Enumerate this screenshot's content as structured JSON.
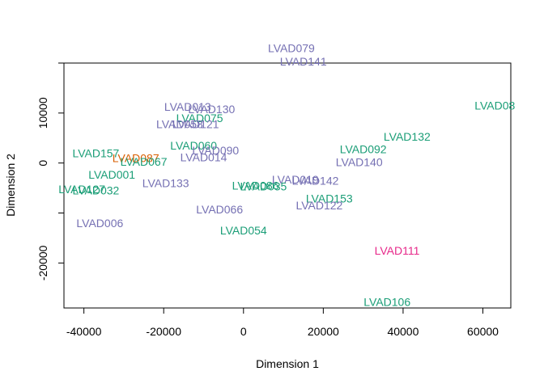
{
  "chart_data": {
    "type": "scatter",
    "title": "",
    "xlabel": "Dimension 1",
    "ylabel": "Dimension 2",
    "xlim": [
      -45000,
      67000
    ],
    "ylim": [
      -29000,
      20000
    ],
    "xticks": [
      -40000,
      -20000,
      0,
      20000,
      40000,
      60000
    ],
    "xtick_labels": [
      "-40000",
      "-20000",
      "0",
      "20000",
      "40000",
      "60000"
    ],
    "yticks": [
      -20000,
      -10000,
      0,
      10000,
      20000
    ],
    "ytick_labels": [
      "-20000",
      "",
      "0",
      "10000",
      ""
    ],
    "grid": false,
    "colors": {
      "green": "#1b9e77",
      "purple": "#7570b3",
      "orange": "#d95f02",
      "magenta": "#e7298a",
      "axis": "#000000"
    },
    "points": [
      {
        "label": "LVAD079",
        "x": 12000,
        "y": 23000,
        "color": "purple"
      },
      {
        "label": "LVAD141",
        "x": 15000,
        "y": 20300,
        "color": "purple"
      },
      {
        "label": "LVAD08",
        "x": 63000,
        "y": 11500,
        "color": "green"
      },
      {
        "label": "LVAD013",
        "x": -14000,
        "y": 11300,
        "color": "purple"
      },
      {
        "label": "LVAD130",
        "x": -8000,
        "y": 10800,
        "color": "purple"
      },
      {
        "label": "LVAD075",
        "x": -11000,
        "y": 9000,
        "color": "green"
      },
      {
        "label": "LVAD058",
        "x": -16000,
        "y": 7800,
        "color": "purple"
      },
      {
        "label": "LVAD121",
        "x": -12000,
        "y": 7800,
        "color": "purple"
      },
      {
        "label": "LVAD132",
        "x": 41000,
        "y": 5300,
        "color": "green"
      },
      {
        "label": "LVAD060",
        "x": -12500,
        "y": 3500,
        "color": "green"
      },
      {
        "label": "LVAD090",
        "x": -7000,
        "y": 2500,
        "color": "purple"
      },
      {
        "label": "LVAD092",
        "x": 30000,
        "y": 2800,
        "color": "green"
      },
      {
        "label": "LVAD157",
        "x": -37000,
        "y": 2000,
        "color": "green"
      },
      {
        "label": "LVAD014",
        "x": -10000,
        "y": 1200,
        "color": "purple"
      },
      {
        "label": "LVAD087",
        "x": -27000,
        "y": 1000,
        "color": "orange"
      },
      {
        "label": "LVAD067",
        "x": -25000,
        "y": 300,
        "color": "green"
      },
      {
        "label": "LVAD140",
        "x": 29000,
        "y": 200,
        "color": "purple"
      },
      {
        "label": "LVAD001",
        "x": -33000,
        "y": -2300,
        "color": "green"
      },
      {
        "label": "LVAD133",
        "x": -19500,
        "y": -4000,
        "color": "purple"
      },
      {
        "label": "LVAD019",
        "x": 13000,
        "y": -3300,
        "color": "purple"
      },
      {
        "label": "LVAD142",
        "x": 18000,
        "y": -3500,
        "color": "purple"
      },
      {
        "label": "LVAD086",
        "x": 3000,
        "y": -4500,
        "color": "green"
      },
      {
        "label": "LVAD035",
        "x": 5000,
        "y": -4700,
        "color": "green"
      },
      {
        "label": "LVAD127",
        "x": -40500,
        "y": -5200,
        "color": "green"
      },
      {
        "label": "LVAD032",
        "x": -37000,
        "y": -5500,
        "color": "green"
      },
      {
        "label": "LVAD153",
        "x": 21500,
        "y": -7100,
        "color": "green"
      },
      {
        "label": "LVAD122",
        "x": 19000,
        "y": -8500,
        "color": "purple"
      },
      {
        "label": "LVAD066",
        "x": -6000,
        "y": -9300,
        "color": "purple"
      },
      {
        "label": "LVAD006",
        "x": -36000,
        "y": -12000,
        "color": "purple"
      },
      {
        "label": "LVAD054",
        "x": 0,
        "y": -13500,
        "color": "green"
      },
      {
        "label": "LVAD111",
        "x": 38500,
        "y": -17500,
        "color": "magenta"
      },
      {
        "label": "LVAD106",
        "x": 36000,
        "y": -27800,
        "color": "green"
      }
    ]
  }
}
